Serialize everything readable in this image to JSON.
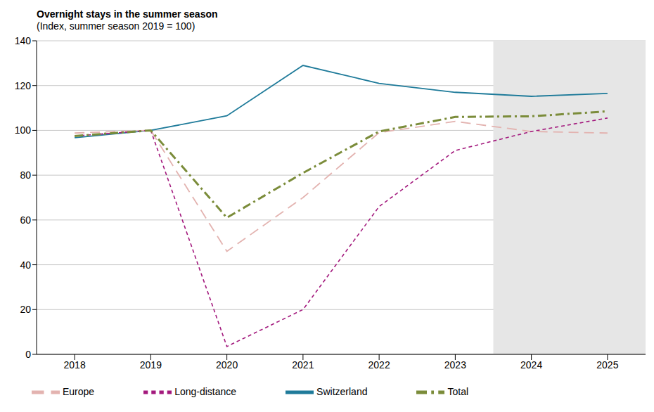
{
  "chart_data": {
    "type": "line",
    "title": "Overnight stays in the summer season",
    "subtitle": "(Index, summer season 2019 = 100)",
    "x": [
      2018,
      2019,
      2020,
      2021,
      2022,
      2023,
      2024,
      2025
    ],
    "xlim": [
      2017.5,
      2025.5
    ],
    "xticks": [
      2018,
      2019,
      2020,
      2021,
      2022,
      2023,
      2024,
      2025
    ],
    "ylim": [
      0,
      140
    ],
    "yticks": [
      0,
      20,
      40,
      60,
      80,
      100,
      120,
      140
    ],
    "grid": true,
    "legend": "bottom",
    "shaded_x": [
      2023.5,
      2025.5
    ],
    "series": [
      {
        "name": "Switzerland",
        "color": "#1f7b9a",
        "line_style": "solid",
        "marker": "none",
        "values": [
          96.7,
          100,
          106.5,
          129,
          121,
          117,
          115.2,
          116.5
        ]
      },
      {
        "name": "Europe",
        "color": "#e3b3b0",
        "line_style": "dashed",
        "marker": "none",
        "values": [
          98.8,
          100,
          46,
          70,
          99,
          104,
          99.5,
          98.8
        ]
      },
      {
        "name": "Long-distance",
        "color": "#a3197d",
        "line_style": "dotted",
        "marker": "none",
        "values": [
          97.5,
          100,
          3.5,
          20,
          66,
          91,
          99.5,
          105.5
        ]
      },
      {
        "name": "Total",
        "color": "#7b8c3a",
        "line_style": "dashdot",
        "marker": "none",
        "values": [
          97.5,
          100,
          61,
          81,
          99.5,
          106,
          106.3,
          108.5
        ]
      }
    ]
  }
}
